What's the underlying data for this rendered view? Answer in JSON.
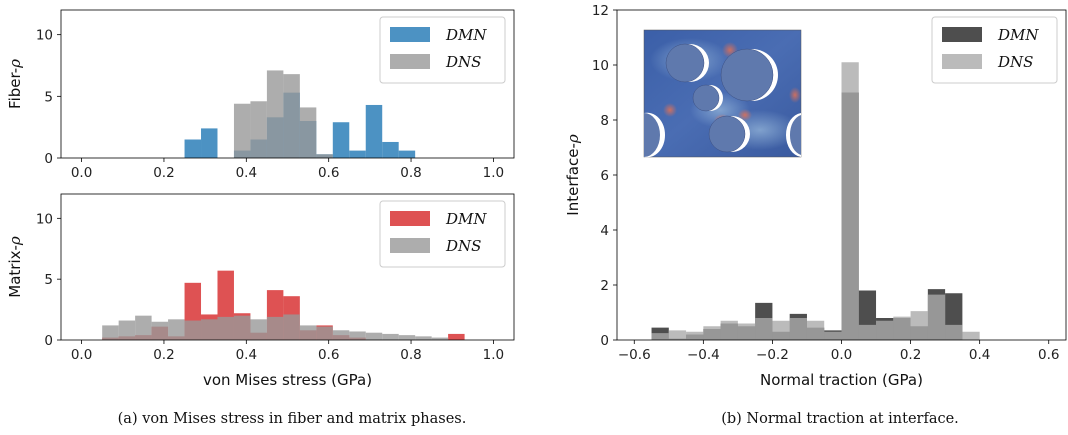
{
  "chart_data": [
    {
      "type": "bar",
      "panel": "fiber",
      "ylabel": "Fiber-ρ",
      "xlim": [
        -0.05,
        1.05
      ],
      "ylim": [
        0,
        12
      ],
      "xticks": [
        "0.0",
        "0.2",
        "0.4",
        "0.6",
        "0.8",
        "1.0"
      ],
      "yticks": [
        "0",
        "5",
        "10"
      ],
      "grid": false,
      "legend_position": "top-right",
      "bin_width": 0.04,
      "series": [
        {
          "name": "DMN",
          "color": "#1f77b4",
          "bins": [
            [
              0.25,
              1.5
            ],
            [
              0.29,
              2.4
            ],
            [
              0.33,
              0
            ],
            [
              0.37,
              0.6
            ],
            [
              0.41,
              1.5
            ],
            [
              0.45,
              3.3
            ],
            [
              0.49,
              5.3
            ],
            [
              0.53,
              3.0
            ],
            [
              0.57,
              0.3
            ],
            [
              0.61,
              2.9
            ],
            [
              0.65,
              0.6
            ],
            [
              0.69,
              4.3
            ],
            [
              0.73,
              1.3
            ],
            [
              0.77,
              0.6
            ]
          ]
        },
        {
          "name": "DNS",
          "color": "#999999",
          "bins": [
            [
              0.37,
              4.4
            ],
            [
              0.41,
              4.6
            ],
            [
              0.45,
              7.1
            ],
            [
              0.49,
              6.8
            ],
            [
              0.53,
              4.1
            ],
            [
              0.57,
              0.3
            ]
          ]
        }
      ]
    },
    {
      "type": "bar",
      "panel": "matrix",
      "ylabel": "Matrix-ρ",
      "xlabel": "von Mises stress (GPa)",
      "xlim": [
        -0.05,
        1.05
      ],
      "ylim": [
        0,
        12
      ],
      "xticks": [
        "0.0",
        "0.2",
        "0.4",
        "0.6",
        "0.8",
        "1.0"
      ],
      "yticks": [
        "0",
        "5",
        "10"
      ],
      "grid": false,
      "legend_position": "top-right",
      "bin_width": 0.04,
      "series": [
        {
          "name": "DMN",
          "color": "#d62728",
          "bins": [
            [
              0.05,
              0.2
            ],
            [
              0.09,
              0.3
            ],
            [
              0.13,
              0.4
            ],
            [
              0.17,
              1.1
            ],
            [
              0.21,
              0.3
            ],
            [
              0.25,
              4.7
            ],
            [
              0.29,
              2.1
            ],
            [
              0.33,
              5.7
            ],
            [
              0.37,
              2.2
            ],
            [
              0.41,
              0.6
            ],
            [
              0.45,
              4.1
            ],
            [
              0.49,
              3.6
            ],
            [
              0.53,
              0.8
            ],
            [
              0.57,
              1.2
            ],
            [
              0.61,
              0.4
            ],
            [
              0.65,
              0.2
            ],
            [
              0.89,
              0.5
            ]
          ]
        },
        {
          "name": "DNS",
          "color": "#999999",
          "bins": [
            [
              0.05,
              1.2
            ],
            [
              0.09,
              1.6
            ],
            [
              0.13,
              2.0
            ],
            [
              0.17,
              1.5
            ],
            [
              0.21,
              1.7
            ],
            [
              0.25,
              1.6
            ],
            [
              0.29,
              1.7
            ],
            [
              0.33,
              1.9
            ],
            [
              0.37,
              2.0
            ],
            [
              0.41,
              1.7
            ],
            [
              0.45,
              1.9
            ],
            [
              0.49,
              2.1
            ],
            [
              0.53,
              1.2
            ],
            [
              0.57,
              1.1
            ],
            [
              0.61,
              0.8
            ],
            [
              0.65,
              0.7
            ],
            [
              0.69,
              0.6
            ],
            [
              0.73,
              0.5
            ],
            [
              0.77,
              0.4
            ],
            [
              0.81,
              0.3
            ],
            [
              0.85,
              0.2
            ]
          ]
        }
      ]
    },
    {
      "type": "bar",
      "panel": "interface",
      "ylabel": "Interface-ρ",
      "xlabel": "Normal traction (GPa)",
      "xlim": [
        -0.65,
        0.65
      ],
      "ylim": [
        0,
        12
      ],
      "xticks": [
        "−0.6",
        "−0.4",
        "−0.2",
        "0.0",
        "0.2",
        "0.4",
        "0.6"
      ],
      "yticks": [
        "0",
        "2",
        "4",
        "6",
        "8",
        "10",
        "12"
      ],
      "grid": false,
      "legend_position": "top-right",
      "bin_width": 0.05,
      "series": [
        {
          "name": "DMN",
          "color": "#222222",
          "bins": [
            [
              -0.55,
              0.45
            ],
            [
              -0.5,
              0.05
            ],
            [
              -0.45,
              0.2
            ],
            [
              -0.4,
              0.4
            ],
            [
              -0.35,
              0.6
            ],
            [
              -0.3,
              0.5
            ],
            [
              -0.25,
              1.35
            ],
            [
              -0.2,
              0.3
            ],
            [
              -0.15,
              0.95
            ],
            [
              -0.1,
              0.45
            ],
            [
              -0.05,
              0.35
            ],
            [
              0.0,
              9.0
            ],
            [
              0.05,
              1.8
            ],
            [
              0.1,
              0.8
            ],
            [
              0.15,
              0.8
            ],
            [
              0.2,
              0.5
            ],
            [
              0.25,
              1.85
            ],
            [
              0.3,
              1.7
            ]
          ]
        },
        {
          "name": "DNS",
          "color": "#aaaaaa",
          "bins": [
            [
              -0.55,
              0.25
            ],
            [
              -0.5,
              0.35
            ],
            [
              -0.45,
              0.3
            ],
            [
              -0.4,
              0.5
            ],
            [
              -0.35,
              0.7
            ],
            [
              -0.3,
              0.6
            ],
            [
              -0.25,
              0.8
            ],
            [
              -0.2,
              0.7
            ],
            [
              -0.15,
              0.8
            ],
            [
              -0.1,
              0.7
            ],
            [
              -0.05,
              0.3
            ],
            [
              0.0,
              10.1
            ],
            [
              0.05,
              0.55
            ],
            [
              0.1,
              0.7
            ],
            [
              0.15,
              0.85
            ],
            [
              0.2,
              1.05
            ],
            [
              0.25,
              1.65
            ],
            [
              0.3,
              0.55
            ],
            [
              0.35,
              0.3
            ]
          ]
        }
      ]
    }
  ],
  "captions": {
    "a": "(a) von Mises stress in fiber and matrix phases.",
    "b": "(b) Normal traction at interface."
  },
  "inset": {
    "description": "interface"
  }
}
